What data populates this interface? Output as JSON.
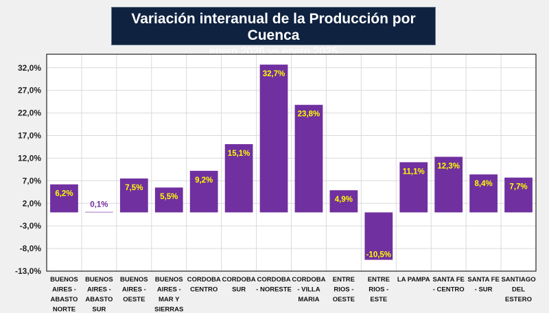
{
  "chart_data": {
    "type": "bar",
    "title": "Variación interanual de la Producción por Cuenca",
    "subtitle": "enero 2026 vs enero 2025",
    "xlabel": "",
    "ylabel": "",
    "ylim": [
      -13,
      35
    ],
    "yticks": [
      32,
      27,
      22,
      17,
      12,
      7,
      2,
      -3,
      -8,
      -13
    ],
    "ytick_labels": [
      "32,0%",
      "27,0%",
      "22,0%",
      "17,0%",
      "12,0%",
      "7,0%",
      "2,0%",
      "-3,0%",
      "-8,0%",
      "-13,0%"
    ],
    "grid": true,
    "categories": [
      [
        "BUENOS",
        "AIRES -",
        "ABASTO",
        "NORTE"
      ],
      [
        "BUENOS",
        "AIRES -",
        "ABASTO",
        "SUR"
      ],
      [
        "BUENOS",
        "AIRES -",
        "OESTE"
      ],
      [
        "BUENOS",
        "AIRES -",
        "MAR Y",
        "SIERRAS"
      ],
      [
        "CORDOBA",
        "CENTRO"
      ],
      [
        "CORDOBA",
        "SUR"
      ],
      [
        "CORDOBA",
        "- NORESTE"
      ],
      [
        "CORDOBA",
        "- VILLA",
        "MARIA"
      ],
      [
        "ENTRE",
        "RIOS -",
        "OESTE"
      ],
      [
        "ENTRE",
        "RIOS -",
        "ESTE"
      ],
      [
        "LA PAMPA"
      ],
      [
        "SANTA FE",
        "- CENTRO"
      ],
      [
        "SANTA FE",
        "- SUR"
      ],
      [
        "SANTIAGO",
        "DEL",
        "ESTERO"
      ]
    ],
    "values": [
      6.2,
      0.1,
      7.5,
      5.5,
      9.2,
      15.1,
      32.7,
      23.8,
      4.9,
      -10.5,
      11.1,
      12.3,
      8.4,
      7.7
    ],
    "data_labels": [
      "6,2%",
      "0,1%",
      "7,5%",
      "5,5%",
      "9,2%",
      "15,1%",
      "32,7%",
      "23,8%",
      "4,9%",
      "-10,5%",
      "11,1%",
      "12,3%",
      "8,4%",
      "7,7%"
    ],
    "colors": {
      "bar": "#7030a0",
      "label": "#ffff00",
      "label_small": "#7030a0",
      "title_bg": "#0f2240"
    }
  }
}
